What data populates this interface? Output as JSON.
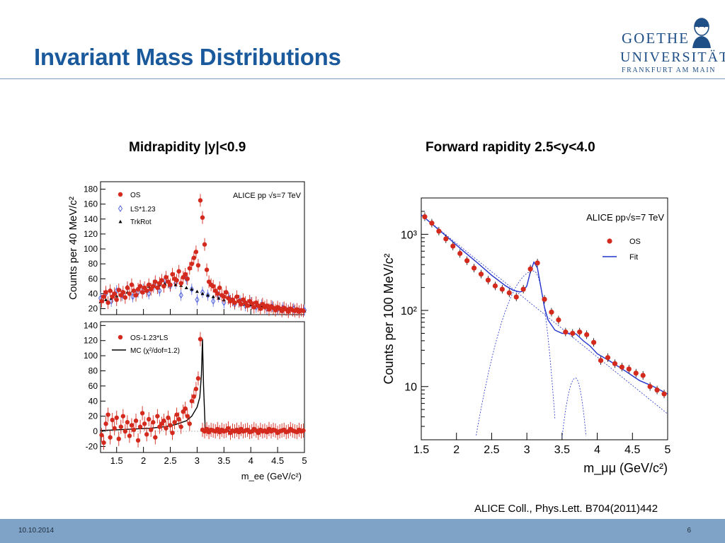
{
  "slide": {
    "title": "Invariant Mass Distributions",
    "left_heading": "Midrapidity |y|<0.9",
    "right_heading": "Forward rapidity 2.5<y<4.0",
    "citation": "ALICE Coll., Phys.Lett. B704(2011)442",
    "footer_date": "10.10.2014",
    "page_number": "6"
  },
  "logo": {
    "name": "GOETHE",
    "university": "UNIVERSITÄT",
    "city": "FRANKFURT AM MAIN"
  },
  "colors": {
    "title": "#1a5a9c",
    "footer": "#7fa3c6",
    "os_marker": "#d42a1e",
    "ls_marker": "#5566dd",
    "fit_line": "#2233cc"
  },
  "chart_data": [
    {
      "type": "scatter",
      "panel": "upper",
      "experiment_label": "ALICE  pp   √s=7 TeV",
      "ylabel": "Counts per 40 MeV/c²",
      "xlim": [
        1.2,
        5.0
      ],
      "ylim": [
        12,
        190
      ],
      "yticks": [
        20,
        40,
        60,
        80,
        100,
        120,
        140,
        160,
        180
      ],
      "legend": [
        "OS",
        "LS*1.23",
        "TrkRot"
      ],
      "series": [
        {
          "name": "OS",
          "x": [
            1.22,
            1.26,
            1.3,
            1.34,
            1.38,
            1.42,
            1.46,
            1.5,
            1.54,
            1.58,
            1.62,
            1.66,
            1.7,
            1.74,
            1.78,
            1.82,
            1.86,
            1.9,
            1.94,
            1.98,
            2.02,
            2.06,
            2.1,
            2.14,
            2.18,
            2.22,
            2.26,
            2.3,
            2.34,
            2.38,
            2.42,
            2.46,
            2.5,
            2.54,
            2.58,
            2.62,
            2.66,
            2.7,
            2.74,
            2.78,
            2.82,
            2.86,
            2.9,
            2.94,
            2.98,
            3.02,
            3.06,
            3.1,
            3.14,
            3.18,
            3.22,
            3.26,
            3.3,
            3.34,
            3.38,
            3.42,
            3.46,
            3.5,
            3.54,
            3.58,
            3.62,
            3.66,
            3.7,
            3.74,
            3.78,
            3.82,
            3.86,
            3.9,
            3.94,
            3.98,
            4.02,
            4.06,
            4.1,
            4.14,
            4.18,
            4.22,
            4.26,
            4.3,
            4.34,
            4.38,
            4.42,
            4.46,
            4.5,
            4.54,
            4.58,
            4.62,
            4.66,
            4.7,
            4.74,
            4.78,
            4.82,
            4.86,
            4.9,
            4.94,
            4.98
          ],
          "y": [
            30,
            36,
            42,
            28,
            44,
            36,
            40,
            32,
            45,
            38,
            42,
            35,
            48,
            40,
            52,
            44,
            38,
            46,
            50,
            42,
            48,
            44,
            52,
            46,
            50,
            56,
            48,
            54,
            58,
            50,
            62,
            56,
            52,
            66,
            60,
            58,
            70,
            54,
            62,
            66,
            60,
            74,
            80,
            88,
            96,
            78,
            165,
            142,
            106,
            72,
            56,
            52,
            50,
            44,
            40,
            48,
            38,
            36,
            42,
            34,
            30,
            32,
            28,
            36,
            30,
            26,
            32,
            28,
            24,
            30,
            27,
            22,
            28,
            24,
            20,
            26,
            22,
            24,
            19,
            23,
            21,
            18,
            22,
            20,
            17,
            21,
            19,
            16,
            20,
            18,
            17,
            19,
            16,
            18,
            17
          ]
        },
        {
          "name": "LS*1.23",
          "x": [
            1.2,
            1.3,
            1.4,
            1.5,
            1.6,
            1.7,
            1.8,
            1.9,
            2.0,
            2.1,
            2.2,
            2.3,
            2.4,
            2.5,
            2.6,
            2.7,
            2.8,
            2.9,
            3.0,
            3.1,
            3.2,
            3.3,
            3.4,
            3.5,
            3.6,
            3.7,
            3.8,
            3.9,
            4.0,
            4.1,
            4.2,
            4.3,
            4.4,
            4.5,
            4.6,
            4.7,
            4.8,
            4.9,
            5.0
          ],
          "y": [
            34,
            40,
            30,
            44,
            38,
            48,
            36,
            42,
            46,
            40,
            52,
            44,
            58,
            50,
            54,
            38,
            60,
            46,
            32,
            42,
            38,
            30,
            36,
            28,
            34,
            26,
            30,
            24,
            28,
            22,
            25,
            20,
            23,
            19,
            21,
            18,
            20,
            17,
            18
          ]
        },
        {
          "name": "TrkRot",
          "x": [
            1.2,
            1.3,
            1.4,
            1.5,
            1.6,
            1.7,
            1.8,
            1.9,
            2.0,
            2.1,
            2.2,
            2.3,
            2.4,
            2.5,
            2.6,
            2.7,
            2.8,
            2.9,
            3.0,
            3.1,
            3.2,
            3.3,
            3.4,
            3.5,
            3.6,
            3.7,
            3.8,
            3.9,
            4.0,
            4.1,
            4.2,
            4.3,
            4.4,
            4.5,
            4.6,
            4.7,
            4.8,
            4.9,
            5.0
          ],
          "y": [
            29,
            32,
            34,
            37,
            40,
            42,
            44,
            46,
            48,
            50,
            51,
            52,
            53,
            53,
            52,
            51,
            48,
            46,
            43,
            40,
            38,
            36,
            34,
            32,
            30,
            28,
            27,
            26,
            25,
            24,
            23,
            22,
            21,
            20,
            19,
            19,
            18,
            18,
            17
          ]
        }
      ]
    },
    {
      "type": "scatter",
      "panel": "lower",
      "xlabel": "m_ee (GeV/c²)",
      "xlim": [
        1.2,
        5.0
      ],
      "ylim": [
        -28,
        145
      ],
      "xticks": [
        1.5,
        2,
        2.5,
        3,
        3.5,
        4,
        4.5,
        5
      ],
      "yticks": [
        -20,
        0,
        20,
        40,
        60,
        80,
        100,
        120,
        140
      ],
      "legend": [
        "OS-1.23*LS",
        "MC (χ²/dof=1.2)"
      ],
      "series": [
        {
          "name": "OS-1.23*LS",
          "x": [
            1.22,
            1.26,
            1.3,
            1.34,
            1.38,
            1.42,
            1.46,
            1.5,
            1.54,
            1.58,
            1.62,
            1.66,
            1.7,
            1.74,
            1.78,
            1.82,
            1.86,
            1.9,
            1.94,
            1.98,
            2.02,
            2.06,
            2.1,
            2.14,
            2.18,
            2.22,
            2.26,
            2.3,
            2.34,
            2.38,
            2.42,
            2.46,
            2.5,
            2.54,
            2.58,
            2.62,
            2.66,
            2.7,
            2.74,
            2.78,
            2.82,
            2.86,
            2.9,
            2.94,
            2.98,
            3.02,
            3.06,
            3.1,
            3.14,
            3.18,
            3.22,
            3.26,
            3.3,
            3.34,
            3.38,
            3.42,
            3.46,
            3.5,
            3.54,
            3.58,
            3.62,
            3.66,
            3.7,
            3.74,
            3.78,
            3.82,
            3.86,
            3.9,
            3.94,
            3.98,
            4.02,
            4.06,
            4.1,
            4.14,
            4.18,
            4.22,
            4.26,
            4.3,
            4.34,
            4.38,
            4.42,
            4.46,
            4.5,
            4.54,
            4.58,
            4.62,
            4.66,
            4.7,
            4.74,
            4.78,
            4.82,
            4.86,
            4.9,
            4.94,
            4.98
          ],
          "y": [
            -5,
            -15,
            10,
            22,
            -8,
            15,
            4,
            18,
            -10,
            6,
            20,
            0,
            12,
            -6,
            8,
            2,
            14,
            -12,
            6,
            24,
            10,
            -4,
            16,
            2,
            12,
            -8,
            20,
            6,
            10,
            14,
            4,
            18,
            8,
            -2,
            12,
            22,
            16,
            6,
            26,
            30,
            20,
            10,
            40,
            46,
            56,
            70,
            122,
            2,
            0,
            3,
            -1,
            2,
            1,
            0,
            3,
            -1,
            2,
            0,
            1,
            4,
            -2,
            1,
            0,
            2,
            -1,
            3,
            0,
            1,
            2,
            -1,
            0,
            3,
            1,
            -2,
            2,
            0,
            1,
            -1,
            3,
            0,
            2,
            1,
            -2,
            0,
            1,
            2,
            -1,
            0,
            3,
            1,
            0,
            -1,
            2,
            0,
            1
          ]
        },
        {
          "name": "MC (χ²/dof=1.2)",
          "x": [
            1.2,
            1.5,
            1.8,
            2.1,
            2.4,
            2.6,
            2.8,
            2.9,
            3.0,
            3.05,
            3.08,
            3.1,
            3.12,
            3.15,
            3.2,
            3.4,
            3.8,
            4.2,
            4.6,
            5.0
          ],
          "y": [
            1,
            2,
            3,
            4,
            6,
            9,
            14,
            20,
            32,
            45,
            75,
            122,
            60,
            4,
            1,
            0.5,
            0.2,
            0.1,
            0,
            0
          ]
        }
      ]
    },
    {
      "type": "scatter",
      "panel": "forward",
      "experiment_label": "ALICE pp√s=7 TeV",
      "ylabel": "Counts per 100 MeV/c²",
      "xlabel": "m_μμ (GeV/c²)",
      "xlim": [
        1.5,
        5.0
      ],
      "ylim": [
        2,
        3000
      ],
      "log_y": true,
      "xticks": [
        1.5,
        2,
        2.5,
        3,
        3.5,
        4,
        4.5,
        5
      ],
      "ytick_labels": [
        "10",
        "10²",
        "10³"
      ],
      "legend": [
        "OS",
        "Fit"
      ],
      "series": [
        {
          "name": "OS",
          "x": [
            1.55,
            1.65,
            1.75,
            1.85,
            1.95,
            2.05,
            2.15,
            2.25,
            2.35,
            2.45,
            2.55,
            2.65,
            2.75,
            2.85,
            2.95,
            3.05,
            3.15,
            3.25,
            3.35,
            3.45,
            3.55,
            3.65,
            3.75,
            3.85,
            3.95,
            4.05,
            4.15,
            4.25,
            4.35,
            4.45,
            4.55,
            4.65,
            4.75,
            4.85,
            4.95
          ],
          "y": [
            1700,
            1400,
            1100,
            870,
            700,
            560,
            450,
            360,
            300,
            250,
            210,
            190,
            170,
            150,
            190,
            350,
            420,
            140,
            95,
            75,
            52,
            50,
            52,
            48,
            38,
            22,
            24,
            20,
            18,
            17,
            15,
            14,
            10,
            9,
            8
          ]
        },
        {
          "name": "Fit",
          "x": [
            1.5,
            1.7,
            1.9,
            2.1,
            2.3,
            2.5,
            2.7,
            2.8,
            2.9,
            2.95,
            3.0,
            3.05,
            3.1,
            3.15,
            3.2,
            3.25,
            3.3,
            3.4,
            3.5,
            3.6,
            3.7,
            3.8,
            3.9,
            4.0,
            4.2,
            4.4,
            4.6,
            4.8,
            5.0
          ],
          "y": [
            1800,
            1250,
            870,
            600,
            420,
            290,
            210,
            185,
            175,
            180,
            210,
            320,
            430,
            360,
            200,
            110,
            75,
            55,
            50,
            50,
            49,
            40,
            34,
            27,
            21,
            16,
            12,
            10,
            8
          ]
        }
      ]
    }
  ]
}
